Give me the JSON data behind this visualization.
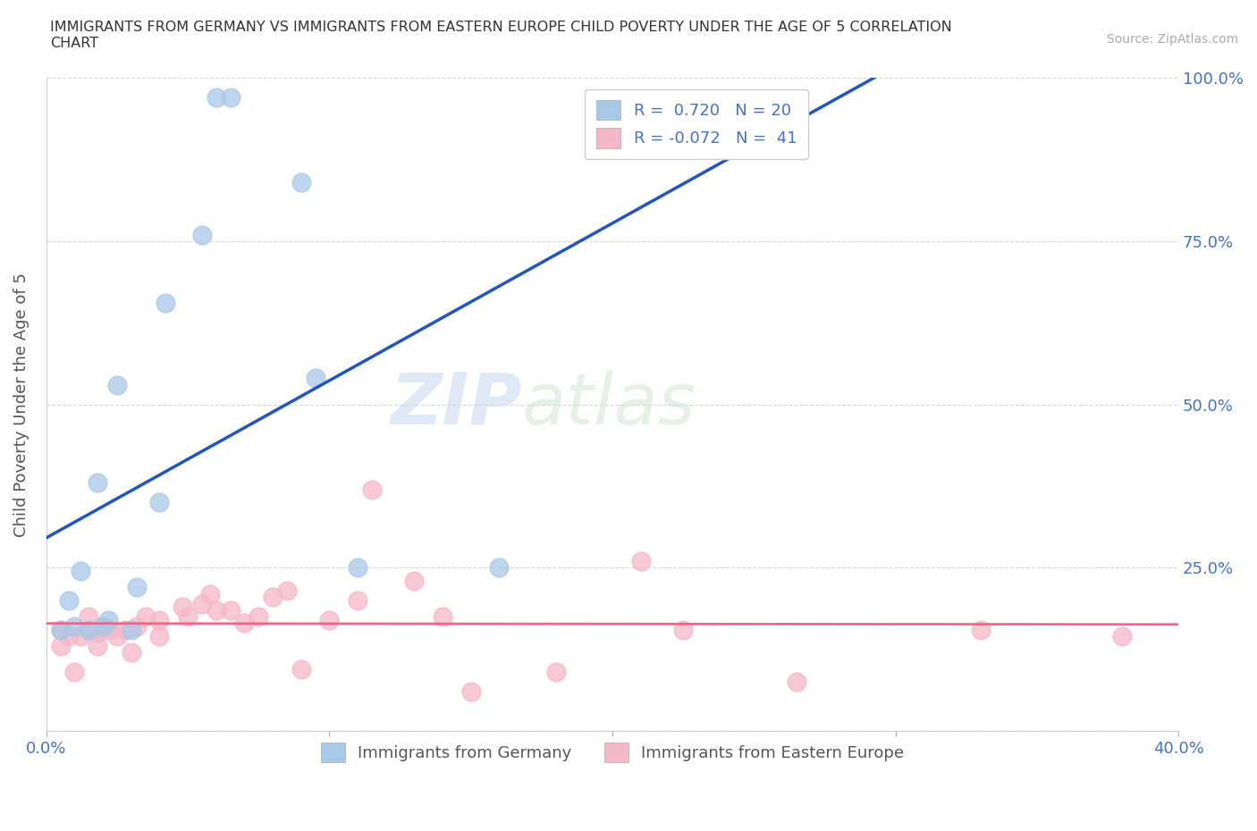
{
  "title": "IMMIGRANTS FROM GERMANY VS IMMIGRANTS FROM EASTERN EUROPE CHILD POVERTY UNDER THE AGE OF 5 CORRELATION\nCHART",
  "source_text": "Source: ZipAtlas.com",
  "ylabel": "Child Poverty Under the Age of 5",
  "xlabel_germany": "Immigrants from Germany",
  "xlabel_eastern": "Immigrants from Eastern Europe",
  "xlim": [
    0.0,
    0.4
  ],
  "ylim": [
    0.0,
    1.0
  ],
  "germany_color": "#a8c8e8",
  "eastern_color": "#f4b8c8",
  "germany_line_color": "#2255bb",
  "eastern_line_color": "#ee6688",
  "watermark_zip": "ZIP",
  "watermark_atlas": "atlas",
  "R_germany": 0.72,
  "N_germany": 20,
  "R_eastern": -0.072,
  "N_eastern": 41,
  "germany_x": [
    0.005,
    0.008,
    0.01,
    0.012,
    0.015,
    0.018,
    0.02,
    0.022,
    0.025,
    0.03,
    0.032,
    0.04,
    0.042,
    0.055,
    0.06,
    0.065,
    0.09,
    0.095,
    0.11,
    0.16
  ],
  "germany_y": [
    0.155,
    0.2,
    0.16,
    0.245,
    0.155,
    0.38,
    0.16,
    0.17,
    0.53,
    0.155,
    0.22,
    0.35,
    0.655,
    0.76,
    0.97,
    0.97,
    0.84,
    0.54,
    0.25,
    0.25
  ],
  "eastern_x": [
    0.005,
    0.005,
    0.008,
    0.01,
    0.012,
    0.015,
    0.015,
    0.018,
    0.018,
    0.02,
    0.022,
    0.025,
    0.028,
    0.03,
    0.032,
    0.035,
    0.04,
    0.04,
    0.048,
    0.05,
    0.055,
    0.058,
    0.06,
    0.065,
    0.07,
    0.075,
    0.08,
    0.085,
    0.09,
    0.1,
    0.11,
    0.115,
    0.13,
    0.14,
    0.15,
    0.18,
    0.21,
    0.225,
    0.265,
    0.33,
    0.38
  ],
  "eastern_y": [
    0.155,
    0.13,
    0.145,
    0.09,
    0.145,
    0.155,
    0.175,
    0.13,
    0.15,
    0.16,
    0.155,
    0.145,
    0.155,
    0.12,
    0.16,
    0.175,
    0.145,
    0.17,
    0.19,
    0.175,
    0.195,
    0.21,
    0.185,
    0.185,
    0.165,
    0.175,
    0.205,
    0.215,
    0.095,
    0.17,
    0.2,
    0.37,
    0.23,
    0.175,
    0.06,
    0.09,
    0.26,
    0.155,
    0.075,
    0.155,
    0.145
  ],
  "background_color": "#ffffff",
  "grid_color": "#cccccc"
}
